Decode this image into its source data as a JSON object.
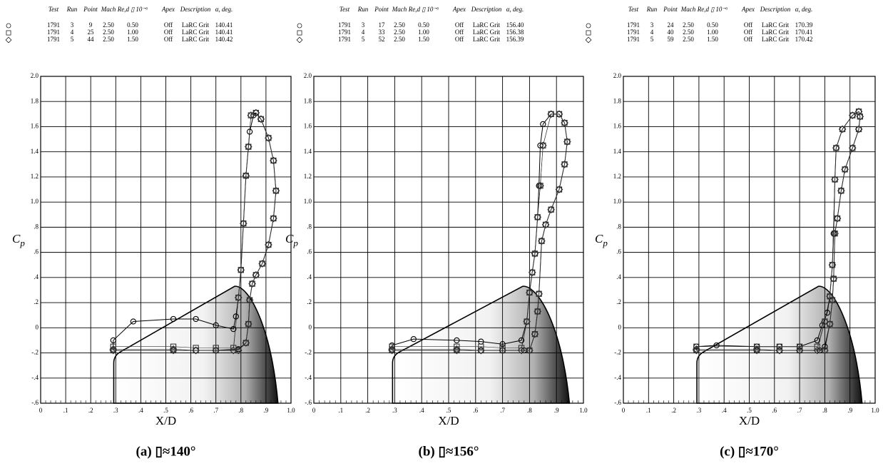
{
  "chart_data": [
    {
      "type": "line",
      "caption": "(a) ▯≈140°",
      "xlabel": "X/D",
      "ylabel": "C",
      "ylabel_sub": "p",
      "legend": {
        "columns": [
          "Test",
          "Run",
          "Point",
          "Mach",
          "Re,d ▯ 10⁻⁶",
          "Apex",
          "Description",
          "α, deg."
        ],
        "rows": [
          [
            "1791",
            "3",
            "9",
            "2.50",
            "0.50",
            "Off",
            "LaRC Grit",
            "140.41"
          ],
          [
            "1791",
            "4",
            "25",
            "2.50",
            "1.00",
            "Off",
            "LaRC Grit",
            "140.41"
          ],
          [
            "1791",
            "5",
            "44",
            "2.50",
            "1.50",
            "Off",
            "LaRC Grit",
            "140.42"
          ]
        ]
      },
      "xlim": [
        0,
        1
      ],
      "ylim": [
        -0.6,
        2.0
      ],
      "grid": true,
      "xticks": [
        0,
        {
          "value": 0.1,
          "label": ".1"
        },
        {
          "value": 0.2,
          "label": ".2"
        },
        {
          "value": 0.3,
          "label": ".3"
        },
        {
          "value": 0.4,
          "label": ".4"
        },
        {
          "value": 0.5,
          "label": ".5"
        },
        {
          "value": 0.6,
          "label": ".6"
        },
        {
          "value": 0.7,
          "label": ".7"
        },
        {
          "value": 0.8,
          "label": ".8"
        },
        {
          "value": 0.9,
          "label": ".9"
        },
        {
          "value": 1,
          "label": "1.0"
        }
      ],
      "yticks": [
        {
          "value": -0.6,
          "label": "-.6"
        },
        {
          "value": -0.4,
          "label": "-.4"
        },
        {
          "value": -0.2,
          "label": "-.2"
        },
        0,
        {
          "value": 0.2,
          "label": ".2"
        },
        {
          "value": 0.4,
          "label": ".4"
        },
        {
          "value": 0.6,
          "label": ".6"
        },
        {
          "value": 0.8,
          "label": ".8"
        },
        {
          "value": 1,
          "label": "1.0"
        },
        {
          "value": 1.2,
          "label": "1.2"
        },
        {
          "value": 1.4,
          "label": "1.4"
        },
        {
          "value": 1.6,
          "label": "1.6"
        },
        {
          "value": 1.8,
          "label": "1.8"
        },
        {
          "value": 2,
          "label": "2.0"
        }
      ],
      "series": [
        {
          "marker": "circle",
          "color": "#000000",
          "x": [
            0.29,
            0.29,
            0.37,
            0.53,
            0.62,
            0.7,
            0.77,
            0.78,
            0.79,
            0.8,
            0.81,
            0.82,
            0.83,
            0.835,
            0.85,
            0.86,
            0.88,
            0.91,
            0.93,
            0.94,
            0.93,
            0.91,
            0.885,
            0.86,
            0.845,
            0.835,
            0.83,
            0.82,
            0.79,
            0.7,
            0.62,
            0.53,
            0.29
          ],
          "values": [
            -0.18,
            -0.1,
            0.05,
            0.07,
            0.07,
            0.02,
            -0.01,
            0.09,
            0.24,
            0.46,
            0.83,
            1.21,
            1.44,
            1.56,
            1.69,
            1.71,
            1.66,
            1.51,
            1.33,
            1.09,
            0.87,
            0.66,
            0.51,
            0.42,
            0.35,
            0.22,
            0.03,
            -0.12,
            -0.17,
            -0.18,
            -0.18,
            -0.18,
            -0.18
          ]
        },
        {
          "marker": "square",
          "color": "#333333",
          "x": [
            0.29,
            0.53,
            0.62,
            0.7,
            0.77,
            0.79,
            0.8,
            0.81,
            0.82,
            0.83,
            0.84,
            0.86,
            0.88,
            0.91,
            0.93,
            0.94,
            0.93,
            0.91,
            0.885,
            0.86,
            0.845,
            0.835,
            0.83,
            0.82,
            0.79,
            0.7,
            0.62,
            0.53,
            0.29
          ],
          "values": [
            -0.15,
            -0.15,
            -0.16,
            -0.16,
            -0.16,
            0.24,
            0.46,
            0.83,
            1.21,
            1.44,
            1.69,
            1.71,
            1.66,
            1.51,
            1.33,
            1.09,
            0.87,
            0.66,
            0.51,
            0.42,
            0.35,
            0.22,
            0.03,
            -0.12,
            -0.18,
            -0.18,
            -0.18,
            -0.18,
            -0.18
          ]
        },
        {
          "marker": "diamond",
          "color": "#333333",
          "x": [
            0.29,
            0.53,
            0.62,
            0.7,
            0.77,
            0.79,
            0.8,
            0.81,
            0.82,
            0.83,
            0.84,
            0.86,
            0.88,
            0.91,
            0.93,
            0.94,
            0.93,
            0.91,
            0.885,
            0.86,
            0.845,
            0.835,
            0.83,
            0.82,
            0.79,
            0.7,
            0.62,
            0.53,
            0.29
          ],
          "values": [
            -0.17,
            -0.17,
            -0.18,
            -0.18,
            -0.18,
            0.24,
            0.46,
            0.83,
            1.21,
            1.44,
            1.69,
            1.71,
            1.66,
            1.51,
            1.33,
            1.09,
            0.87,
            0.66,
            0.51,
            0.42,
            0.35,
            0.22,
            0.03,
            -0.12,
            -0.18,
            -0.18,
            -0.18,
            -0.18,
            -0.18
          ]
        }
      ]
    },
    {
      "type": "line",
      "caption": "(b) ▯≈156°",
      "xlabel": "X/D",
      "ylabel": "C",
      "ylabel_sub": "p",
      "legend": {
        "columns": [
          "Test",
          "Run",
          "Point",
          "Mach",
          "Re,d ▯ 10⁻⁶",
          "Apex",
          "Description",
          "α, deg."
        ],
        "rows": [
          [
            "1791",
            "3",
            "17",
            "2.50",
            "0.50",
            "Off",
            "LaRC Grit",
            "156.40"
          ],
          [
            "1791",
            "4",
            "33",
            "2.50",
            "1.00",
            "Off",
            "LaRC Grit",
            "156.38"
          ],
          [
            "1791",
            "5",
            "52",
            "2.50",
            "1.50",
            "Off",
            "LaRC Grit",
            "156.39"
          ]
        ]
      },
      "xlim": [
        0,
        1
      ],
      "ylim": [
        -0.6,
        2.0
      ],
      "grid": true,
      "xticks": [
        0,
        {
          "value": 0.1,
          "label": ".1"
        },
        {
          "value": 0.2,
          "label": ".2"
        },
        {
          "value": 0.3,
          "label": ".3"
        },
        {
          "value": 0.4,
          "label": ".4"
        },
        {
          "value": 0.5,
          "label": ".5"
        },
        {
          "value": 0.6,
          "label": ".6"
        },
        {
          "value": 0.7,
          "label": ".7"
        },
        {
          "value": 0.8,
          "label": ".8"
        },
        {
          "value": 0.9,
          "label": ".9"
        },
        {
          "value": 1,
          "label": "1.0"
        }
      ],
      "yticks": [
        {
          "value": -0.6,
          "label": "-.6"
        },
        {
          "value": -0.4,
          "label": "-.4"
        },
        {
          "value": -0.2,
          "label": "-.2"
        },
        0,
        {
          "value": 0.2,
          "label": ".2"
        },
        {
          "value": 0.4,
          "label": ".4"
        },
        {
          "value": 0.6,
          "label": ".6"
        },
        {
          "value": 0.8,
          "label": ".8"
        },
        {
          "value": 1,
          "label": "1.0"
        },
        {
          "value": 1.2,
          "label": "1.2"
        },
        {
          "value": 1.4,
          "label": "1.4"
        },
        {
          "value": 1.6,
          "label": "1.6"
        },
        {
          "value": 1.8,
          "label": "1.8"
        },
        {
          "value": 2,
          "label": "2.0"
        }
      ],
      "series": [
        {
          "marker": "circle",
          "color": "#000000",
          "x": [
            0.29,
            0.29,
            0.37,
            0.53,
            0.62,
            0.7,
            0.77,
            0.79,
            0.8,
            0.81,
            0.82,
            0.83,
            0.835,
            0.84,
            0.85,
            0.88,
            0.91,
            0.93,
            0.94,
            0.93,
            0.91,
            0.88,
            0.86,
            0.845,
            0.835,
            0.83,
            0.82,
            0.8,
            0.78,
            0.7,
            0.62,
            0.53,
            0.29
          ],
          "values": [
            -0.18,
            -0.14,
            -0.09,
            -0.1,
            -0.11,
            -0.13,
            -0.1,
            0.05,
            0.28,
            0.44,
            0.59,
            0.88,
            1.13,
            1.45,
            1.62,
            1.7,
            1.7,
            1.63,
            1.48,
            1.3,
            1.1,
            0.94,
            0.82,
            0.69,
            0.27,
            0.13,
            -0.05,
            -0.18,
            -0.18,
            -0.18,
            -0.18,
            -0.18,
            -0.18
          ]
        },
        {
          "marker": "square",
          "color": "#333333",
          "x": [
            0.29,
            0.53,
            0.62,
            0.7,
            0.77,
            0.79,
            0.8,
            0.81,
            0.82,
            0.83,
            0.84,
            0.85,
            0.88,
            0.91,
            0.93,
            0.94,
            0.93,
            0.91,
            0.88,
            0.86,
            0.845,
            0.835,
            0.83,
            0.82,
            0.8,
            0.7,
            0.62,
            0.53,
            0.29
          ],
          "values": [
            -0.15,
            -0.15,
            -0.15,
            -0.16,
            -0.16,
            0.05,
            0.28,
            0.44,
            0.59,
            0.88,
            1.13,
            1.45,
            1.7,
            1.7,
            1.63,
            1.48,
            1.3,
            1.1,
            0.94,
            0.82,
            0.69,
            0.27,
            0.13,
            -0.05,
            -0.18,
            -0.18,
            -0.18,
            -0.18,
            -0.18
          ]
        },
        {
          "marker": "diamond",
          "color": "#333333",
          "x": [
            0.29,
            0.53,
            0.62,
            0.7,
            0.77,
            0.79,
            0.8,
            0.81,
            0.82,
            0.83,
            0.84,
            0.85,
            0.88,
            0.91,
            0.93,
            0.94,
            0.93,
            0.91,
            0.88,
            0.86,
            0.845,
            0.835,
            0.83,
            0.82,
            0.8,
            0.7,
            0.62,
            0.53,
            0.29
          ],
          "values": [
            -0.17,
            -0.17,
            -0.18,
            -0.18,
            -0.18,
            0.05,
            0.28,
            0.44,
            0.59,
            0.88,
            1.13,
            1.45,
            1.7,
            1.7,
            1.63,
            1.48,
            1.3,
            1.1,
            0.94,
            0.82,
            0.69,
            0.27,
            0.13,
            -0.05,
            -0.18,
            -0.18,
            -0.18,
            -0.18,
            -0.18
          ]
        }
      ]
    },
    {
      "type": "line",
      "caption": "(c) ▯≈170°",
      "xlabel": "X/D",
      "ylabel": "C",
      "ylabel_sub": "p",
      "legend": {
        "columns": [
          "Test",
          "Run",
          "Point",
          "Mach",
          "Re,d ▯ 10⁻⁶",
          "Apex",
          "Description",
          "α, deg."
        ],
        "rows": [
          [
            "1791",
            "3",
            "24",
            "2.50",
            "0.50",
            "Off",
            "LaRC Grit",
            "170.39"
          ],
          [
            "1791",
            "4",
            "40",
            "2.50",
            "1.00",
            "Off",
            "LaRC Grit",
            "170.41"
          ],
          [
            "1791",
            "5",
            "59",
            "2.50",
            "1.50",
            "Off",
            "LaRC Grit",
            "170.42"
          ]
        ]
      },
      "xlim": [
        0,
        1
      ],
      "ylim": [
        -0.6,
        2.0
      ],
      "grid": true,
      "xticks": [
        0,
        {
          "value": 0.1,
          "label": ".1"
        },
        {
          "value": 0.2,
          "label": ".2"
        },
        {
          "value": 0.3,
          "label": ".3"
        },
        {
          "value": 0.4,
          "label": ".4"
        },
        {
          "value": 0.5,
          "label": ".5"
        },
        {
          "value": 0.6,
          "label": ".6"
        },
        {
          "value": 0.7,
          "label": ".7"
        },
        {
          "value": 0.8,
          "label": ".8"
        },
        {
          "value": 0.9,
          "label": ".9"
        },
        {
          "value": 1,
          "label": "1.0"
        }
      ],
      "yticks": [
        {
          "value": -0.6,
          "label": "-.6"
        },
        {
          "value": -0.4,
          "label": "-.4"
        },
        {
          "value": -0.2,
          "label": "-.2"
        },
        0,
        {
          "value": 0.2,
          "label": ".2"
        },
        {
          "value": 0.4,
          "label": ".4"
        },
        {
          "value": 0.6,
          "label": ".6"
        },
        {
          "value": 0.8,
          "label": ".8"
        },
        {
          "value": 1,
          "label": "1.0"
        },
        {
          "value": 1.2,
          "label": "1.2"
        },
        {
          "value": 1.4,
          "label": "1.4"
        },
        {
          "value": 1.6,
          "label": "1.6"
        },
        {
          "value": 1.8,
          "label": "1.8"
        },
        {
          "value": 2,
          "label": "2.0"
        }
      ],
      "series": [
        {
          "marker": "circle",
          "color": "#000000",
          "x": [
            0.29,
            0.29,
            0.37,
            0.53,
            0.62,
            0.7,
            0.77,
            0.79,
            0.81,
            0.82,
            0.83,
            0.835,
            0.84,
            0.845,
            0.87,
            0.91,
            0.935,
            0.94,
            0.935,
            0.91,
            0.88,
            0.865,
            0.85,
            0.84,
            0.835,
            0.83,
            0.82,
            0.8,
            0.78,
            0.7,
            0.62,
            0.53,
            0.29
          ],
          "values": [
            -0.18,
            -0.15,
            -0.14,
            -0.15,
            -0.15,
            -0.15,
            -0.1,
            0.02,
            0.12,
            0.25,
            0.5,
            0.75,
            1.18,
            1.43,
            1.58,
            1.69,
            1.72,
            1.68,
            1.58,
            1.43,
            1.26,
            1.09,
            0.87,
            0.75,
            0.39,
            0.22,
            0.03,
            -0.15,
            -0.18,
            -0.18,
            -0.18,
            -0.18,
            -0.18
          ]
        },
        {
          "marker": "square",
          "color": "#333333",
          "x": [
            0.29,
            0.53,
            0.62,
            0.7,
            0.77,
            0.8,
            0.82,
            0.83,
            0.84,
            0.845,
            0.87,
            0.91,
            0.935,
            0.94,
            0.935,
            0.91,
            0.88,
            0.865,
            0.85,
            0.84,
            0.835,
            0.83,
            0.82,
            0.8,
            0.7,
            0.62,
            0.53,
            0.29
          ],
          "values": [
            -0.15,
            -0.15,
            -0.15,
            -0.15,
            -0.15,
            0.05,
            0.25,
            0.5,
            1.18,
            1.43,
            1.58,
            1.69,
            1.72,
            1.68,
            1.58,
            1.43,
            1.26,
            1.09,
            0.87,
            0.75,
            0.39,
            0.22,
            0.03,
            -0.18,
            -0.18,
            -0.18,
            -0.18,
            -0.18
          ]
        },
        {
          "marker": "diamond",
          "color": "#333333",
          "x": [
            0.29,
            0.53,
            0.62,
            0.7,
            0.77,
            0.8,
            0.82,
            0.83,
            0.84,
            0.845,
            0.87,
            0.91,
            0.935,
            0.94,
            0.935,
            0.91,
            0.88,
            0.865,
            0.85,
            0.84,
            0.835,
            0.83,
            0.82,
            0.8,
            0.7,
            0.62,
            0.53,
            0.29
          ],
          "values": [
            -0.17,
            -0.17,
            -0.18,
            -0.18,
            -0.18,
            0.05,
            0.25,
            0.5,
            1.18,
            1.43,
            1.58,
            1.69,
            1.72,
            1.68,
            1.58,
            1.43,
            1.26,
            1.09,
            0.87,
            0.75,
            0.39,
            0.22,
            0.03,
            -0.18,
            -0.18,
            -0.18,
            -0.18,
            -0.18
          ]
        }
      ]
    }
  ]
}
